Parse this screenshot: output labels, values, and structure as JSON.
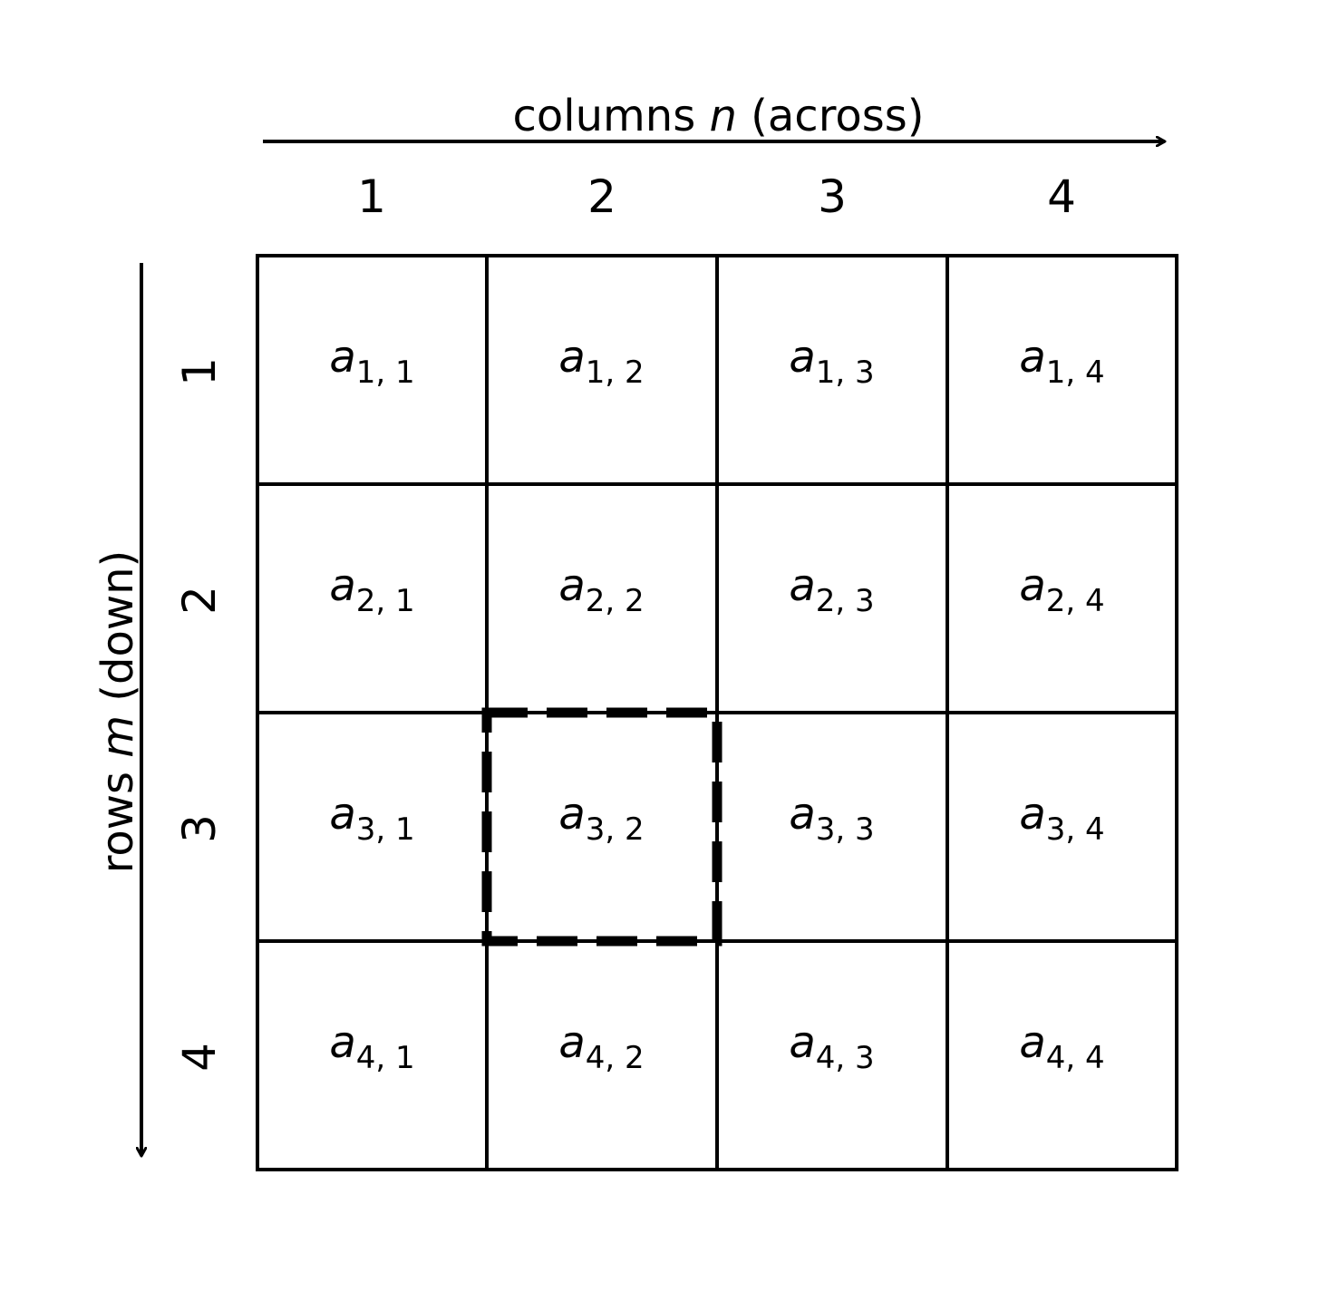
{
  "diagram": {
    "column_axis": {
      "prefix": "columns ",
      "variable": "n",
      "suffix": " (across)"
    },
    "row_axis": {
      "prefix": "rows ",
      "variable": "m",
      "suffix": " (down)"
    },
    "column_numbers": [
      "1",
      "2",
      "3",
      "4"
    ],
    "row_numbers": [
      "1",
      "2",
      "3",
      "4"
    ],
    "cell_symbol": "a",
    "cells": [
      [
        {
          "sub": "1, 1"
        },
        {
          "sub": "1, 2"
        },
        {
          "sub": "1, 3"
        },
        {
          "sub": "1, 4"
        }
      ],
      [
        {
          "sub": "2, 1"
        },
        {
          "sub": "2, 2"
        },
        {
          "sub": "2, 3"
        },
        {
          "sub": "2, 4"
        }
      ],
      [
        {
          "sub": "3, 1"
        },
        {
          "sub": "3, 2"
        },
        {
          "sub": "3, 3"
        },
        {
          "sub": "3, 4"
        }
      ],
      [
        {
          "sub": "4, 1"
        },
        {
          "sub": "4, 2"
        },
        {
          "sub": "4, 3"
        },
        {
          "sub": "4, 4"
        }
      ]
    ],
    "highlighted_cell": {
      "row": 3,
      "column": 2
    },
    "line_color": "#000000",
    "background_color": "#ffffff"
  }
}
